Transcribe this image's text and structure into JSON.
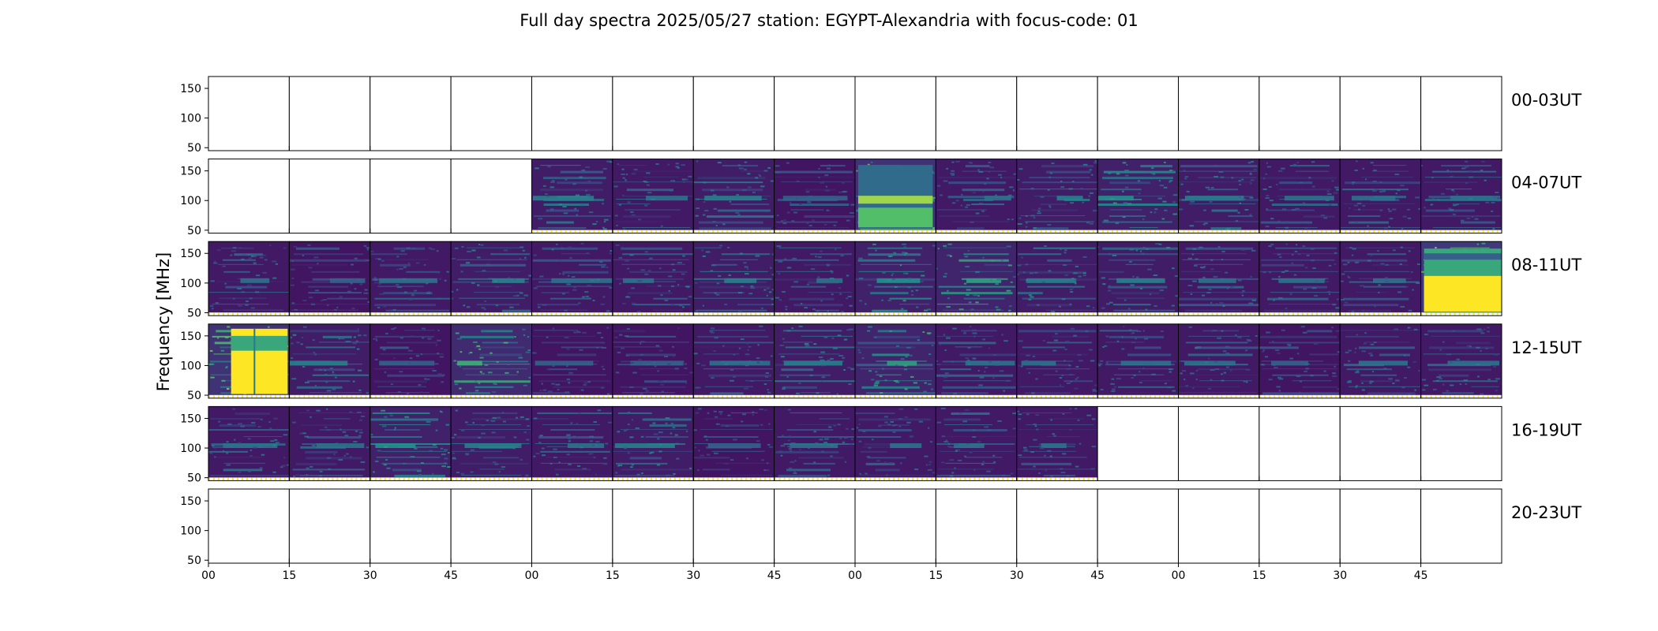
{
  "chart_data": {
    "type": "heatmap",
    "title": "Full day spectra 2025/05/27 station: EGYPT-Alexandria with focus-code: 01",
    "ylabel": "Frequency [MHz]",
    "xlabel": "",
    "ylim": [
      45,
      170
    ],
    "y_ticks": [
      "150",
      "100",
      "50"
    ],
    "x_ticks": [
      "00",
      "15",
      "30",
      "45",
      "00",
      "15",
      "30",
      "45",
      "00",
      "15",
      "30",
      "45",
      "00",
      "15",
      "30",
      "45"
    ],
    "columns_per_row": 16,
    "panel_minutes": 15,
    "colormap": [
      "#440154",
      "#3b528b",
      "#21918c",
      "#5ec962",
      "#fde725"
    ],
    "rows": [
      {
        "label": "00-03UT",
        "present": [
          0,
          0,
          0,
          0,
          0,
          0,
          0,
          0,
          0,
          0,
          0,
          0,
          0,
          0,
          0,
          0
        ],
        "intensity": [
          0,
          0,
          0,
          0,
          0,
          0,
          0,
          0,
          0,
          0,
          0,
          0,
          0,
          0,
          0,
          0
        ],
        "bursts": [
          0,
          0,
          0,
          0,
          0,
          0,
          0,
          0,
          0,
          0,
          0,
          0,
          0,
          0,
          0,
          0
        ]
      },
      {
        "label": "04-07UT",
        "present": [
          0,
          0,
          0,
          0,
          1,
          1,
          1,
          1,
          1,
          1,
          1,
          1,
          1,
          1,
          1,
          1
        ],
        "intensity": [
          0,
          0,
          0,
          0,
          0.35,
          0.3,
          0.35,
          0.25,
          0.6,
          0.3,
          0.35,
          0.4,
          0.35,
          0.3,
          0.3,
          0.3
        ],
        "bursts": [
          0,
          0,
          0,
          0,
          0,
          0,
          0,
          0,
          1,
          0,
          0,
          0,
          0,
          0,
          0,
          0
        ]
      },
      {
        "label": "08-11UT",
        "present": [
          1,
          1,
          1,
          1,
          1,
          1,
          1,
          1,
          1,
          1,
          1,
          1,
          1,
          1,
          1,
          1
        ],
        "intensity": [
          0.3,
          0.25,
          0.3,
          0.35,
          0.3,
          0.3,
          0.35,
          0.3,
          0.4,
          0.45,
          0.35,
          0.35,
          0.3,
          0.3,
          0.3,
          0.7
        ],
        "bursts": [
          0,
          0,
          0,
          0,
          0,
          0,
          0,
          0,
          0,
          0,
          0,
          0,
          0,
          0,
          0,
          2
        ]
      },
      {
        "label": "12-15UT",
        "present": [
          1,
          1,
          1,
          1,
          1,
          1,
          1,
          1,
          1,
          1,
          1,
          1,
          1,
          1,
          1,
          1
        ],
        "intensity": [
          0.6,
          0.35,
          0.25,
          0.5,
          0.25,
          0.25,
          0.3,
          0.35,
          0.45,
          0.3,
          0.3,
          0.3,
          0.3,
          0.25,
          0.3,
          0.3
        ],
        "bursts": [
          3,
          0,
          0,
          0,
          0,
          0,
          0,
          0,
          0,
          0,
          0,
          0,
          0,
          0,
          0,
          0
        ]
      },
      {
        "label": "16-19UT",
        "present": [
          1,
          1,
          1,
          1,
          1,
          1,
          1,
          1,
          1,
          1,
          1,
          0,
          0,
          0,
          0,
          0
        ],
        "intensity": [
          0.3,
          0.3,
          0.4,
          0.35,
          0.3,
          0.35,
          0.25,
          0.3,
          0.3,
          0.3,
          0.3,
          0,
          0,
          0,
          0,
          0
        ],
        "bursts": [
          0,
          0,
          0,
          0,
          0,
          0,
          0,
          0,
          0,
          0,
          0,
          0,
          0,
          0,
          0,
          0
        ]
      },
      {
        "label": "20-23UT",
        "present": [
          0,
          0,
          0,
          0,
          0,
          0,
          0,
          0,
          0,
          0,
          0,
          0,
          0,
          0,
          0,
          0
        ],
        "intensity": [
          0,
          0,
          0,
          0,
          0,
          0,
          0,
          0,
          0,
          0,
          0,
          0,
          0,
          0,
          0,
          0
        ],
        "bursts": [
          0,
          0,
          0,
          0,
          0,
          0,
          0,
          0,
          0,
          0,
          0,
          0,
          0,
          0,
          0,
          0
        ]
      }
    ]
  }
}
